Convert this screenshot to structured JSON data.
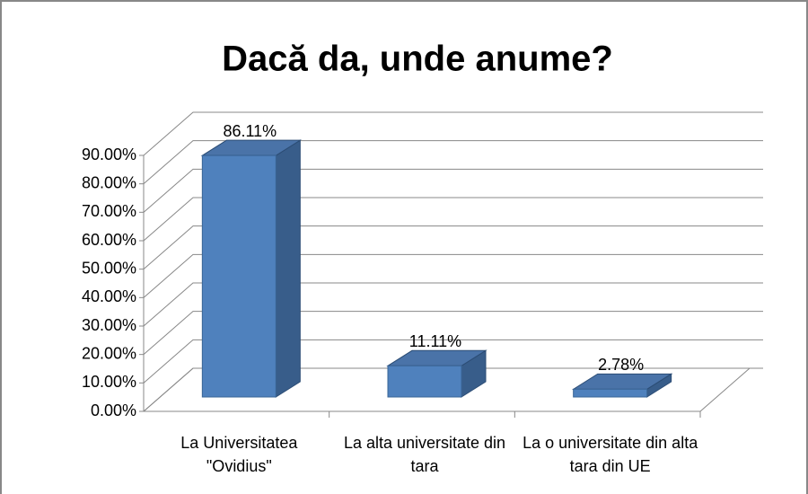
{
  "chart_data": {
    "type": "bar3d",
    "title": "Dacă da, unde anume?",
    "categories": [
      "La Universitatea \"Ovidius\"",
      "La alta universitate din tara",
      "La o universitate din alta tara din UE"
    ],
    "values": [
      86.11,
      11.11,
      2.78
    ],
    "value_labels": [
      "86.11%",
      "11.11%",
      "2.78%"
    ],
    "color": "#4f81bd",
    "ylim": [
      0,
      90
    ],
    "yticks": [
      {
        "value": 0,
        "label": "0.00%"
      },
      {
        "value": 10,
        "label": "10.00%"
      },
      {
        "value": 20,
        "label": "20.00%"
      },
      {
        "value": 30,
        "label": "30.00%"
      },
      {
        "value": 40,
        "label": "40.00%"
      },
      {
        "value": 50,
        "label": "50.00%"
      },
      {
        "value": 60,
        "label": "60.00%"
      },
      {
        "value": 70,
        "label": "70.00%"
      },
      {
        "value": 80,
        "label": "80.00%"
      },
      {
        "value": 90,
        "label": "90.00%"
      }
    ],
    "grid": true
  }
}
